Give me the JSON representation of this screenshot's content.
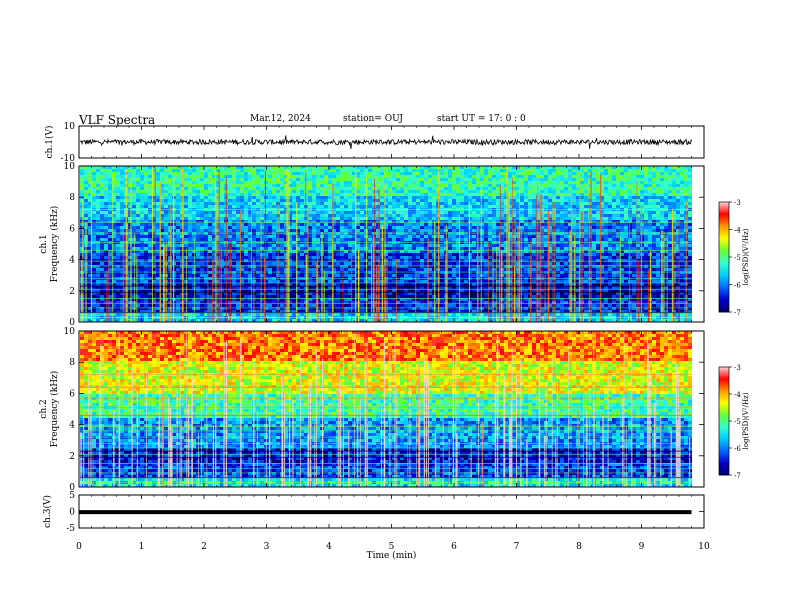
{
  "header": {
    "title": "VLF Spectra",
    "date": "Mar.12, 2024",
    "station": "station= OUJ",
    "start_time": "start  UT =   17: 0  : 0"
  },
  "colors": {
    "colormap": [
      "#000066",
      "#0000cc",
      "#0066ff",
      "#00ccff",
      "#33ffcc",
      "#66ff33",
      "#ffff00",
      "#ff9900",
      "#ff0000",
      "#ffd6d6"
    ],
    "waveform": "#000000"
  },
  "chart_data": [
    {
      "type": "line",
      "ylabel": "ch.1(V)",
      "ylim": [
        -10,
        10
      ],
      "yticks": [
        "10",
        "-10"
      ],
      "x": [
        0,
        1,
        2,
        3,
        4,
        5,
        6,
        7,
        8,
        9,
        9.8
      ],
      "y": [
        0,
        0,
        0,
        0,
        0,
        0,
        0,
        0,
        0,
        0,
        0
      ],
      "note_band": [
        -2,
        2
      ]
    },
    {
      "type": "heatmap",
      "ylabel": "ch.1\nFrequency (kHz)",
      "ylim": [
        0,
        10
      ],
      "yticks": [
        "0",
        "2",
        "4",
        "6",
        "8",
        "10"
      ],
      "colorbar": {
        "label": "log(PSD)(V²/Hz)",
        "range": [
          -7,
          -3
        ],
        "ticks": [
          "-3",
          "-4",
          "-5",
          "-6",
          "-7"
        ]
      },
      "band_levels": [
        {
          "f": [
            0,
            0.5
          ],
          "level": -5.6
        },
        {
          "f": [
            0.5,
            1.5
          ],
          "level": -6.4
        },
        {
          "f": [
            1.5,
            2.5
          ],
          "level": -6.6
        },
        {
          "f": [
            2.5,
            4.5
          ],
          "level": -6.3
        },
        {
          "f": [
            4.5,
            6.5
          ],
          "level": -6.0
        },
        {
          "f": [
            6.5,
            8
          ],
          "level": -5.6
        },
        {
          "f": [
            8,
            10
          ],
          "level": -5.2
        }
      ]
    },
    {
      "type": "heatmap",
      "ylabel": "ch.2\nFrequency (kHz)",
      "ylim": [
        0,
        10
      ],
      "yticks": [
        "0",
        "2",
        "4",
        "6",
        "8",
        "10"
      ],
      "colorbar": {
        "label": "log(PSD)(V²/Hz)",
        "range": [
          -7,
          -3
        ],
        "ticks": [
          "-3",
          "-4",
          "-5",
          "-6",
          "-7"
        ]
      },
      "band_levels": [
        {
          "f": [
            0,
            0.5
          ],
          "level": -5.5
        },
        {
          "f": [
            0.5,
            1.5
          ],
          "level": -6.3
        },
        {
          "f": [
            1.5,
            2.5
          ],
          "level": -6.5
        },
        {
          "f": [
            2.5,
            4.5
          ],
          "level": -5.9
        },
        {
          "f": [
            4.5,
            6
          ],
          "level": -5.1
        },
        {
          "f": [
            6,
            8
          ],
          "level": -4.4
        },
        {
          "f": [
            8,
            10
          ],
          "level": -3.8
        }
      ]
    },
    {
      "type": "line",
      "ylabel": "ch.3(V)",
      "ylim": [
        -5,
        5
      ],
      "yticks": [
        "5",
        "0",
        "-5"
      ],
      "x": [
        0,
        9.8
      ],
      "y": [
        -0.2,
        -0.2
      ]
    }
  ],
  "xaxis": {
    "label": "Time (min)",
    "range": [
      0,
      10
    ],
    "ticks": [
      "0",
      "1",
      "2",
      "3",
      "4",
      "5",
      "6",
      "7",
      "8",
      "9",
      "10"
    ]
  }
}
